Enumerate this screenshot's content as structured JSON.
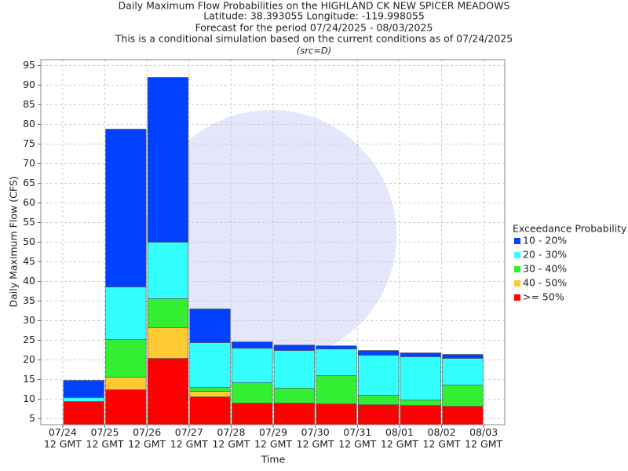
{
  "chart_data": {
    "type": "stacked_bar",
    "title": "Daily Maximum Flow Probabilities on the HIGHLAND CK NEW SPICER MEADOWS",
    "subtitle_lines": [
      "Latitude: 38.393055 Longitude: -119.998055",
      "Forecast for the period 07/24/2025 - 08/03/2025",
      "This is a conditional simulation based on the current conditions as of 07/24/2025"
    ],
    "source_note": "(src=D)",
    "x_label": "Time",
    "y_label": "Daily Maximum Flow (CFS)",
    "legend_title": "Exceedance Probability",
    "xlim": [
      -0.52,
      10.5
    ],
    "xticks": [
      {
        "value": 0,
        "label": "07/24\n12 GMT"
      },
      {
        "value": 1,
        "label": "07/25\n12 GMT"
      },
      {
        "value": 2,
        "label": "07/26\n12 GMT"
      },
      {
        "value": 3,
        "label": "07/27\n12 GMT"
      },
      {
        "value": 4,
        "label": "07/28\n12 GMT"
      },
      {
        "value": 5,
        "label": "07/29\n12 GMT"
      },
      {
        "value": 6,
        "label": "07/30\n12 GMT"
      },
      {
        "value": 7,
        "label": "07/31\n12 GMT"
      },
      {
        "value": 8,
        "label": "08/01\n12 GMT"
      },
      {
        "value": 9,
        "label": "08/02\n12 GMT"
      },
      {
        "value": 10,
        "label": "08/03\n12 GMT"
      }
    ],
    "ylim": [
      3.5,
      96.5
    ],
    "yticks": [
      5,
      10,
      15,
      20,
      25,
      30,
      35,
      40,
      45,
      50,
      55,
      60,
      65,
      70,
      75,
      80,
      85,
      90,
      95
    ],
    "grid": true,
    "series": [
      {
        "name": "10 - 20%",
        "color": "#0040ff",
        "values": [
          4.4,
          40.2,
          42,
          8.6,
          1.6,
          1.4,
          0.8,
          1.2,
          1.0,
          1.0
        ]
      },
      {
        "name": "20 - 30%",
        "color": "#33ffff",
        "values": [
          1.0,
          13.4,
          14.4,
          11.4,
          8.8,
          9.6,
          6.8,
          10.2,
          11,
          6.8
        ]
      },
      {
        "name": "30 - 40%",
        "color": "#33ee33",
        "values": [
          0,
          9.6,
          7.4,
          1.0,
          5.2,
          3.8,
          7.2,
          2.4,
          1.4,
          5.4
        ]
      },
      {
        "name": "40 - 50%",
        "color": "#ffc933",
        "values": [
          0,
          3.2,
          7.8,
          1.4,
          0,
          0,
          0,
          0,
          0,
          0
        ]
      },
      {
        "name": ">= 50%",
        "color": "#ff0000",
        "values": [
          9.4,
          12.4,
          20.4,
          10.6,
          9,
          9,
          8.8,
          8.6,
          8.4,
          8.2
        ]
      }
    ]
  }
}
